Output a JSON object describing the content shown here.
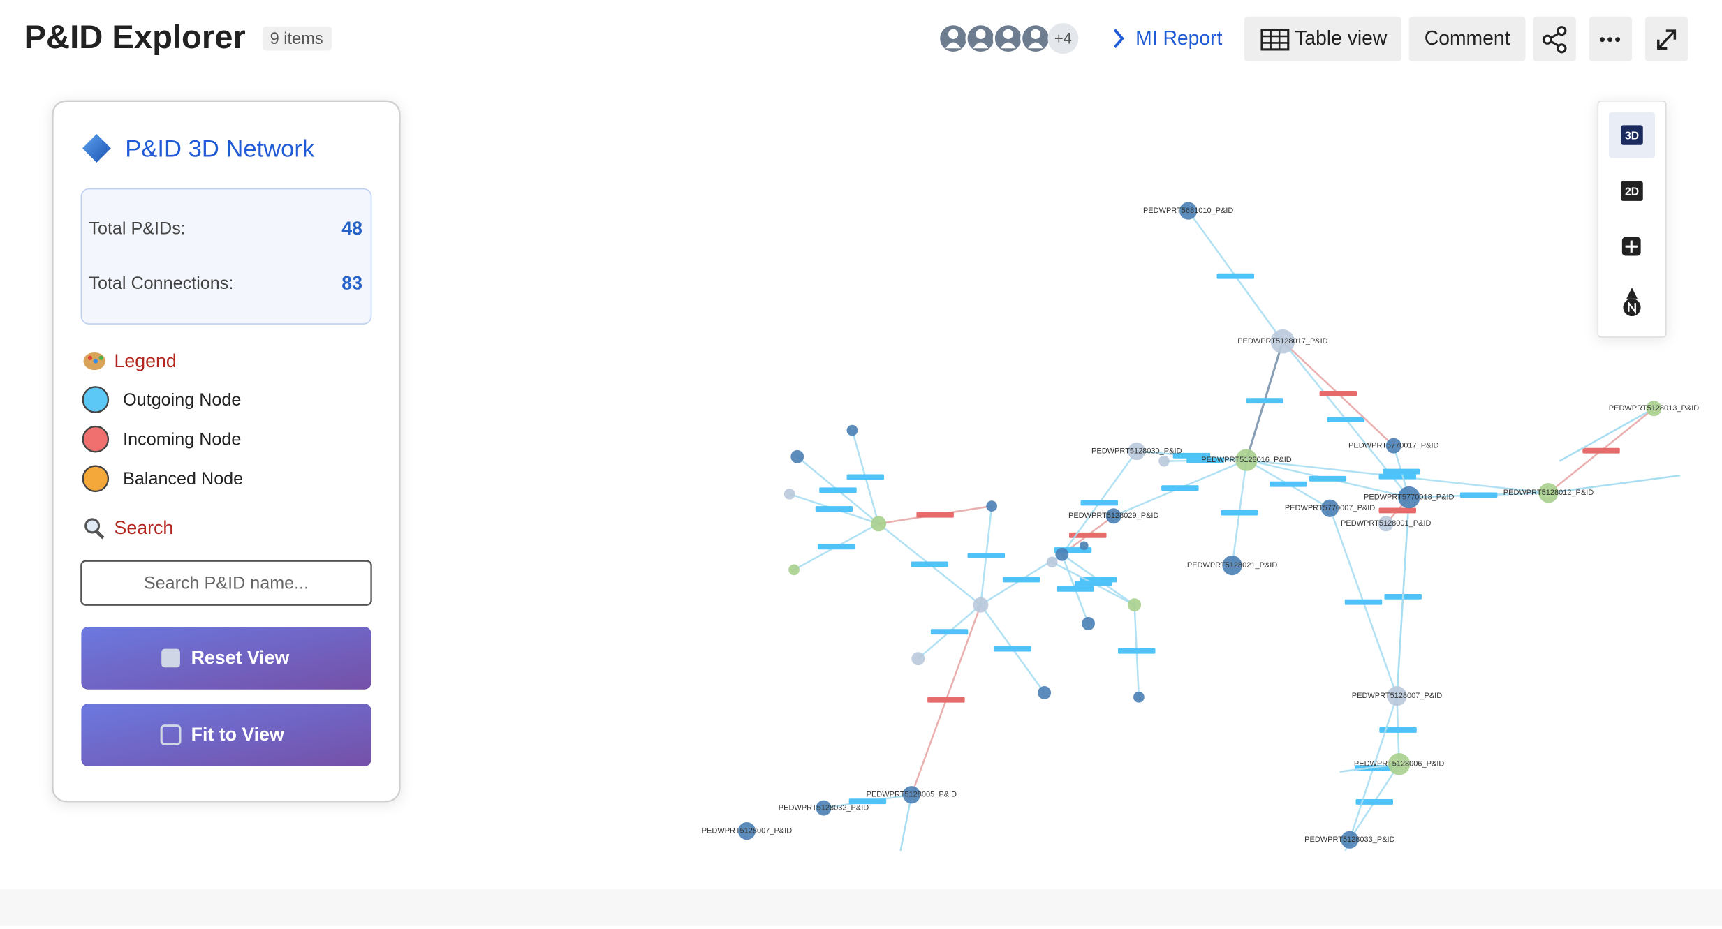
{
  "header": {
    "title": "P&ID Explorer",
    "item_count": "9 items",
    "avatar_overflow": "+4",
    "breadcrumb": "MI Report",
    "buttons": [
      "Table view",
      "Comment"
    ]
  },
  "panel": {
    "title": "P&ID 3D Network",
    "stats": [
      {
        "label": "Total P&IDs:",
        "value": 48
      },
      {
        "label": "Total Connections:",
        "value": 83
      }
    ],
    "legend_title": "Legend",
    "legend": [
      {
        "label": "Outgoing Node",
        "color": "#5bc8f5"
      },
      {
        "label": "Incoming Node",
        "color": "#f07070"
      },
      {
        "label": "Balanced Node",
        "color": "#f5a83a"
      }
    ],
    "search_title": "Search",
    "search_placeholder": "Search P&ID name...",
    "actions": [
      "Reset View",
      "Fit to View"
    ]
  },
  "view_controls": [
    "3D",
    "2D"
  ],
  "graph": {
    "nodes": [
      {
        "label": "PEDWPRT5681010_P&ID",
        "color": "#4a7fb5"
      },
      {
        "label": "PEDWPRT5128017_P&ID",
        "color": "#b9c9db"
      },
      {
        "label": "PEDWPRT5128016_P&ID",
        "color": "#a9cf8e"
      },
      {
        "label": "PEDWPRT5128030_P&ID",
        "color": "#b9c9db"
      },
      {
        "label": "PEDWPRT5128029_P&ID",
        "color": "#4a7fb5"
      },
      {
        "label": "PEDWPRT5770017_P&ID",
        "color": "#4a7fb5"
      },
      {
        "label": "PEDWPRT5770018_P&ID",
        "color": "#4a7fb5"
      },
      {
        "label": "PEDWPRT5770007_P&ID",
        "color": "#4a7fb5"
      },
      {
        "label": "PEDWPRT5128001_P&ID",
        "color": "#b9c9db"
      },
      {
        "label": "PEDWPRT5128012_P&ID",
        "color": "#a9cf8e"
      },
      {
        "label": "PEDWPRT5128013_P&ID",
        "color": "#a9cf8e"
      },
      {
        "label": "PEDWPRT5128021_P&ID",
        "color": "#4a7fb5"
      },
      {
        "label": "PEDWPRT5128007_P&ID",
        "color": "#b9c9db"
      },
      {
        "label": "PEDWPRT5128006_P&ID",
        "color": "#a9cf8e"
      },
      {
        "label": "PEDWPRT5128033_P&ID",
        "color": "#4a7fb5"
      },
      {
        "label": "PEDWPRT5128005_P&ID",
        "color": "#4a7fb5"
      },
      {
        "label": "PEDWPRT5128032_P&ID",
        "color": "#4a7fb5"
      },
      {
        "label": "PEDWPRT5128007_P&ID",
        "color": "#4a7fb5"
      }
    ]
  }
}
